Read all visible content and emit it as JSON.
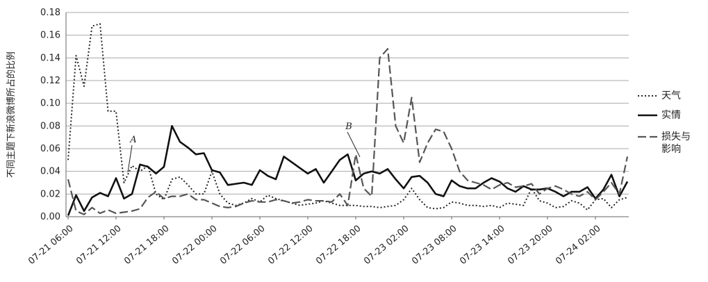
{
  "chart_data": {
    "type": "line",
    "y_label": "不同主题下新浪微博所占的比例",
    "categories": [
      "07-21 06:00",
      null,
      null,
      null,
      null,
      null,
      "07-21 12:00",
      null,
      null,
      null,
      null,
      null,
      "07-21 18:00",
      null,
      null,
      null,
      null,
      null,
      "07-22 00:00",
      null,
      null,
      null,
      null,
      null,
      "07-22 06:00",
      null,
      null,
      null,
      null,
      null,
      "07-22 12:00",
      null,
      null,
      null,
      null,
      null,
      "07-22 18:00",
      null,
      null,
      null,
      null,
      null,
      "07-23 02:00",
      null,
      null,
      null,
      null,
      null,
      "07-23 08:00",
      null,
      null,
      null,
      null,
      null,
      "07-23 14:00",
      null,
      null,
      null,
      null,
      null,
      "07-23 20:00",
      null,
      null,
      null,
      null,
      null,
      "07-24 02:00",
      null,
      null,
      null,
      null
    ],
    "series": [
      {
        "name": "天气",
        "color": "#222222",
        "style": "dotted",
        "values": [
          0.05,
          0.142,
          0.115,
          0.168,
          0.17,
          0.093,
          0.093,
          0.03,
          0.045,
          0.04,
          0.045,
          0.02,
          0.015,
          0.033,
          0.035,
          0.028,
          0.02,
          0.02,
          0.04,
          0.02,
          0.012,
          0.01,
          0.012,
          0.016,
          0.013,
          0.019,
          0.016,
          0.014,
          0.012,
          0.01,
          0.011,
          0.012,
          0.014,
          0.012,
          0.01,
          0.01,
          0.01,
          0.009,
          0.009,
          0.008,
          0.009,
          0.01,
          0.015,
          0.025,
          0.015,
          0.008,
          0.007,
          0.008,
          0.013,
          0.012,
          0.01,
          0.01,
          0.009,
          0.01,
          0.008,
          0.012,
          0.011,
          0.01,
          0.025,
          0.014,
          0.012,
          0.008,
          0.009,
          0.014,
          0.012,
          0.006,
          0.015,
          0.016,
          0.008,
          0.015,
          0.017
        ]
      },
      {
        "name": "实情",
        "color": "#111111",
        "style": "solid",
        "values": [
          0.001,
          0.019,
          0.005,
          0.017,
          0.021,
          0.018,
          0.034,
          0.016,
          0.02,
          0.046,
          0.044,
          0.038,
          0.044,
          0.08,
          0.066,
          0.061,
          0.055,
          0.056,
          0.041,
          0.039,
          0.028,
          0.029,
          0.03,
          0.028,
          0.041,
          0.036,
          0.033,
          0.053,
          0.048,
          0.043,
          0.038,
          0.042,
          0.03,
          0.04,
          0.05,
          0.055,
          0.032,
          0.038,
          0.04,
          0.038,
          0.042,
          0.033,
          0.025,
          0.035,
          0.036,
          0.03,
          0.02,
          0.018,
          0.032,
          0.027,
          0.025,
          0.025,
          0.03,
          0.034,
          0.031,
          0.025,
          0.022,
          0.027,
          0.024,
          0.024,
          0.025,
          0.022,
          0.018,
          0.022,
          0.022,
          0.026,
          0.016,
          0.024,
          0.037,
          0.018,
          0.031
        ]
      },
      {
        "name": "损失与影响",
        "color": "#555555",
        "style": "dashed",
        "values": [
          0.033,
          0.005,
          0.002,
          0.008,
          0.003,
          0.006,
          0.003,
          0.004,
          0.005,
          0.007,
          0.017,
          0.022,
          0.016,
          0.018,
          0.018,
          0.02,
          0.015,
          0.015,
          0.012,
          0.009,
          0.008,
          0.009,
          0.012,
          0.014,
          0.013,
          0.013,
          0.015,
          0.014,
          0.012,
          0.013,
          0.015,
          0.014,
          0.014,
          0.013,
          0.02,
          0.01,
          0.055,
          0.025,
          0.018,
          0.14,
          0.148,
          0.08,
          0.065,
          0.105,
          0.048,
          0.065,
          0.077,
          0.075,
          0.06,
          0.04,
          0.032,
          0.03,
          0.028,
          0.024,
          0.028,
          0.03,
          0.026,
          0.027,
          0.029,
          0.02,
          0.025,
          0.027,
          0.024,
          0.02,
          0.018,
          0.022,
          0.015,
          0.022,
          0.03,
          0.02,
          0.053
        ]
      }
    ],
    "ylim": [
      0,
      0.18
    ],
    "yticks": [
      {
        "value": 0,
        "label": "0.00"
      },
      {
        "value": 0.02,
        "label": "0.02"
      },
      {
        "value": 0.04,
        "label": "0.04"
      },
      {
        "value": 0.06,
        "label": "0.06"
      },
      {
        "value": 0.08,
        "label": "0.08"
      },
      {
        "value": 0.1,
        "label": "0.10"
      },
      {
        "value": 0.12,
        "label": "0.12"
      },
      {
        "value": 0.14,
        "label": "0.14"
      },
      {
        "value": 0.16,
        "label": "0.16"
      },
      {
        "value": 0.18,
        "label": "0.18"
      }
    ],
    "grid": true,
    "legend": "right",
    "annotations": [
      {
        "text": "A"
      },
      {
        "text": "B"
      }
    ]
  }
}
